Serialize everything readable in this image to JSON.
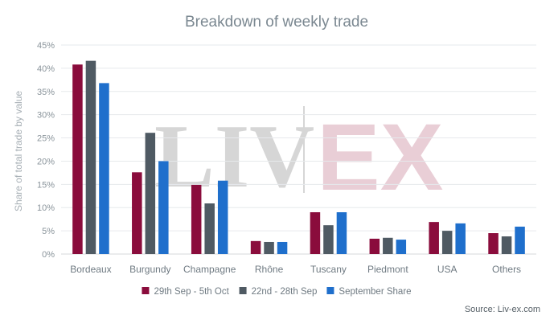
{
  "chart_data": {
    "type": "bar",
    "title": "Breakdown of weekly trade",
    "ylabel": "Share of total trade by value",
    "xlabel": "",
    "ylim": [
      0,
      45
    ],
    "yticks": [
      "0%",
      "5%",
      "10%",
      "15%",
      "20%",
      "25%",
      "30%",
      "35%",
      "40%",
      "45%"
    ],
    "categories": [
      "Bordeaux",
      "Burgundy",
      "Champagne",
      "Rhône",
      "Tuscany",
      "Piedmont",
      "USA",
      "Others"
    ],
    "series": [
      {
        "name": "29th Sep - 5th Oct",
        "color": "#8a0c3c",
        "values": [
          40.8,
          17.6,
          14.9,
          2.8,
          9.0,
          3.3,
          6.9,
          4.5
        ]
      },
      {
        "name": "22nd - 28th Sep",
        "color": "#4f5a63",
        "values": [
          41.6,
          26.1,
          10.9,
          2.6,
          6.2,
          3.5,
          5.0,
          3.8
        ]
      },
      {
        "name": "September Share",
        "color": "#1f6fcc",
        "values": [
          36.8,
          20.0,
          15.8,
          2.6,
          9.0,
          3.1,
          6.6,
          5.9
        ]
      }
    ],
    "grid": true,
    "legend": "bottom",
    "watermark": {
      "left": "LIV",
      "right": "EX"
    },
    "source": "Source: Liv-ex.com"
  }
}
